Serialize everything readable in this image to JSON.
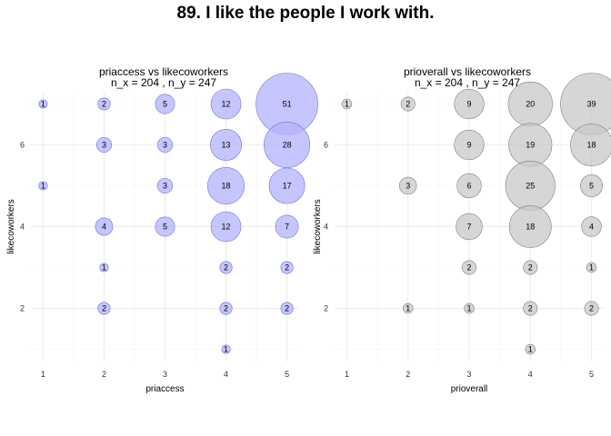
{
  "figure_title": "89. I like the people I work with.",
  "chart_data": [
    {
      "type": "scatter",
      "title": "priaccess vs likecoworkers",
      "subtitle": "n_x = 204 , n_y = 247",
      "xlabel": "priaccess",
      "ylabel": "likecoworkers",
      "x_ticks": [
        "1",
        "2",
        "3",
        "4",
        "5"
      ],
      "y_ticks": [
        "2",
        "4",
        "6"
      ],
      "xlim": [
        0.8,
        5.2
      ],
      "ylim": [
        0.7,
        7.3
      ],
      "color": "#b3b3ff",
      "stroke": "#7070e0",
      "grid": true,
      "points": [
        {
          "x": 1,
          "y": 7,
          "count": 1
        },
        {
          "x": 2,
          "y": 7,
          "count": 2
        },
        {
          "x": 3,
          "y": 7,
          "count": 5
        },
        {
          "x": 4,
          "y": 7,
          "count": 12
        },
        {
          "x": 5,
          "y": 7,
          "count": 51
        },
        {
          "x": 2,
          "y": 6,
          "count": 3
        },
        {
          "x": 3,
          "y": 6,
          "count": 3
        },
        {
          "x": 4,
          "y": 6,
          "count": 13
        },
        {
          "x": 5,
          "y": 6,
          "count": 28
        },
        {
          "x": 1,
          "y": 5,
          "count": 1
        },
        {
          "x": 3,
          "y": 5,
          "count": 3
        },
        {
          "x": 4,
          "y": 5,
          "count": 18
        },
        {
          "x": 5,
          "y": 5,
          "count": 17
        },
        {
          "x": 2,
          "y": 4,
          "count": 4
        },
        {
          "x": 3,
          "y": 4,
          "count": 5
        },
        {
          "x": 4,
          "y": 4,
          "count": 12
        },
        {
          "x": 5,
          "y": 4,
          "count": 7
        },
        {
          "x": 2,
          "y": 3,
          "count": 1
        },
        {
          "x": 4,
          "y": 3,
          "count": 2
        },
        {
          "x": 5,
          "y": 3,
          "count": 2
        },
        {
          "x": 2,
          "y": 2,
          "count": 2
        },
        {
          "x": 4,
          "y": 2,
          "count": 2
        },
        {
          "x": 5,
          "y": 2,
          "count": 2
        },
        {
          "x": 4,
          "y": 1,
          "count": 1
        }
      ]
    },
    {
      "type": "scatter",
      "title": "prioverall vs likecoworkers",
      "subtitle": "n_x = 204 , n_y = 247",
      "xlabel": "prioverall",
      "ylabel": "likecoworkers",
      "x_ticks": [
        "1",
        "2",
        "3",
        "4",
        "5"
      ],
      "y_ticks": [
        "2",
        "4",
        "6"
      ],
      "xlim": [
        0.8,
        5.2
      ],
      "ylim": [
        0.7,
        7.3
      ],
      "color": "#c8c8c8",
      "stroke": "#808080",
      "grid": true,
      "points": [
        {
          "x": 1,
          "y": 7,
          "count": 1
        },
        {
          "x": 2,
          "y": 7,
          "count": 2
        },
        {
          "x": 3,
          "y": 7,
          "count": 9
        },
        {
          "x": 4,
          "y": 7,
          "count": 20
        },
        {
          "x": 5,
          "y": 7,
          "count": 39
        },
        {
          "x": 3,
          "y": 6,
          "count": 9
        },
        {
          "x": 4,
          "y": 6,
          "count": 19
        },
        {
          "x": 5,
          "y": 6,
          "count": 18
        },
        {
          "x": 2,
          "y": 5,
          "count": 3
        },
        {
          "x": 3,
          "y": 5,
          "count": 6
        },
        {
          "x": 4,
          "y": 5,
          "count": 25
        },
        {
          "x": 5,
          "y": 5,
          "count": 5
        },
        {
          "x": 3,
          "y": 4,
          "count": 7
        },
        {
          "x": 4,
          "y": 4,
          "count": 18
        },
        {
          "x": 5,
          "y": 4,
          "count": 4
        },
        {
          "x": 3,
          "y": 3,
          "count": 2
        },
        {
          "x": 4,
          "y": 3,
          "count": 2
        },
        {
          "x": 5,
          "y": 3,
          "count": 1
        },
        {
          "x": 2,
          "y": 2,
          "count": 1
        },
        {
          "x": 3,
          "y": 2,
          "count": 1
        },
        {
          "x": 4,
          "y": 2,
          "count": 2
        },
        {
          "x": 5,
          "y": 2,
          "count": 2
        },
        {
          "x": 4,
          "y": 1,
          "count": 1
        }
      ]
    }
  ]
}
